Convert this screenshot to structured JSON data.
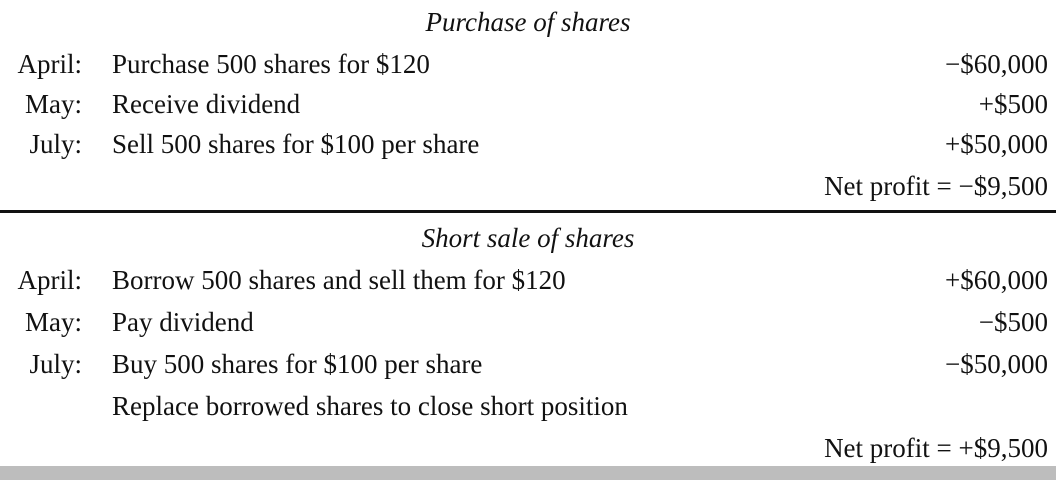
{
  "purchase": {
    "heading": "Purchase of shares",
    "rows": [
      {
        "month": "April:",
        "desc": "Purchase 500 shares for $120",
        "amount": "−$60,000"
      },
      {
        "month": "May:",
        "desc": "Receive dividend",
        "amount": "+$500"
      },
      {
        "month": "July:",
        "desc": "Sell 500 shares for $100 per share",
        "amount": "+$50,000"
      }
    ],
    "net_profit": "Net profit = −$9,500"
  },
  "short_sale": {
    "heading": "Short sale of shares",
    "rows": [
      {
        "month": "April:",
        "desc": "Borrow 500 shares and sell them for $120",
        "amount": "+$60,000"
      },
      {
        "month": "May:",
        "desc": "Pay dividend",
        "amount": "−$500"
      },
      {
        "month": "July:",
        "desc": "Buy 500 shares for $100 per share",
        "amount": "−$50,000"
      },
      {
        "month": "",
        "desc": "Replace borrowed shares to close short position",
        "amount": ""
      }
    ],
    "net_profit": "Net profit = +$9,500"
  }
}
